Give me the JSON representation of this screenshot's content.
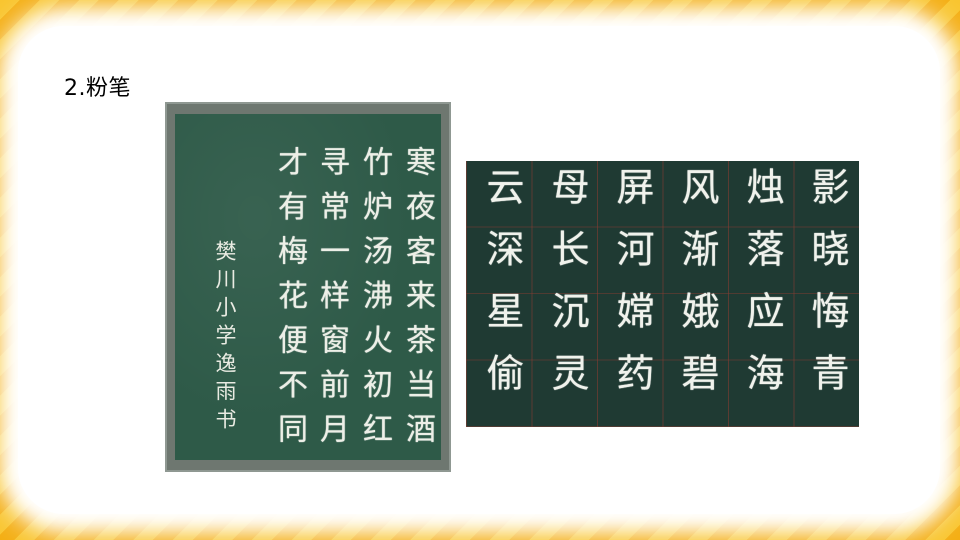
{
  "slide": {
    "heading": "2.粉笔"
  },
  "left_board": {
    "poem_columns": [
      "寒夜客来茶当酒",
      "竹炉汤沸火初红",
      "寻常一样窗前月",
      "才有梅花便不同"
    ],
    "signature": "樊川小学逸雨书"
  },
  "right_board": {
    "columns": [
      "影晓悔青",
      "烛落应海",
      "风渐娥碧",
      "屏河嫦药",
      "母长沉灵",
      "云深星偷"
    ]
  },
  "colors": {
    "background": "#F7B81C",
    "chalkboard_green": "#2E5A48",
    "chalkboard_dark": "#1F3A33",
    "chalk": "#EDEFE7"
  }
}
